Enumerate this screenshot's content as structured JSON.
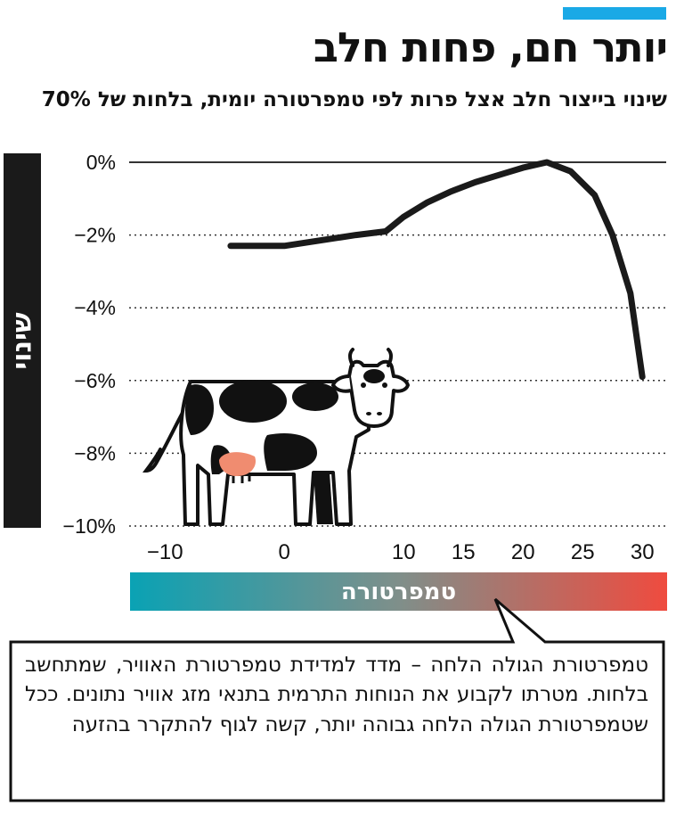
{
  "header": {
    "title": "יותר חם, פחות חלב",
    "subtitle": "שינוי בייצור חלב אצל פרות לפי טמפרטורה יומית, בלחות של 70%"
  },
  "colors": {
    "accent": "#1aa9e6",
    "line": "#1a1a1a",
    "gradient_start": "#0aa2b4",
    "gradient_end": "#ef4b3f"
  },
  "chart_data": {
    "type": "line",
    "title": "יותר חם, פחות חלב",
    "subtitle": "שינוי בייצור חלב אצל פרות לפי טמפרטורה יומית, בלחות של 70%",
    "ylabel": "שינוי",
    "xlabel": "טמפרטורה",
    "xlim": [
      -13,
      32
    ],
    "ylim": [
      -10,
      0
    ],
    "x_ticks": [
      "−10",
      "0",
      "10",
      "15",
      "20",
      "25",
      "30"
    ],
    "x_tick_values": [
      -10,
      0,
      10,
      15,
      20,
      25,
      30
    ],
    "y_ticks": [
      "0%",
      "−2%",
      "−4%",
      "−6%",
      "−8%",
      "−10%"
    ],
    "y_tick_values": [
      0,
      -2,
      -4,
      -6,
      -8,
      -10
    ],
    "grid": "horizontal",
    "series": [
      {
        "x": [
          -4.5,
          0,
          3,
          6,
          8.5,
          10,
          12,
          14,
          16,
          18.5,
          20,
          22,
          24,
          26,
          27.5,
          29,
          30
        ],
        "y": [
          -2.3,
          -2.3,
          -2.15,
          -2.0,
          -1.9,
          -1.5,
          -1.1,
          -0.8,
          -0.55,
          -0.3,
          -0.15,
          0,
          -0.25,
          -0.9,
          -2.0,
          -3.6,
          -5.9
        ]
      }
    ]
  },
  "footnote": {
    "text": "טמפרטורת הגולה הלחה – מדד למדידת טמפרטורת האוויר, שמתחשב בלחות. מטרתו לקבוע את הנוחות התרמית בתנאי מזג אוויר נתונים. ככל שטמפרטורת הגולה הלחה גבוהה יותר, קשה לגוף להתקרר בהזעה"
  }
}
